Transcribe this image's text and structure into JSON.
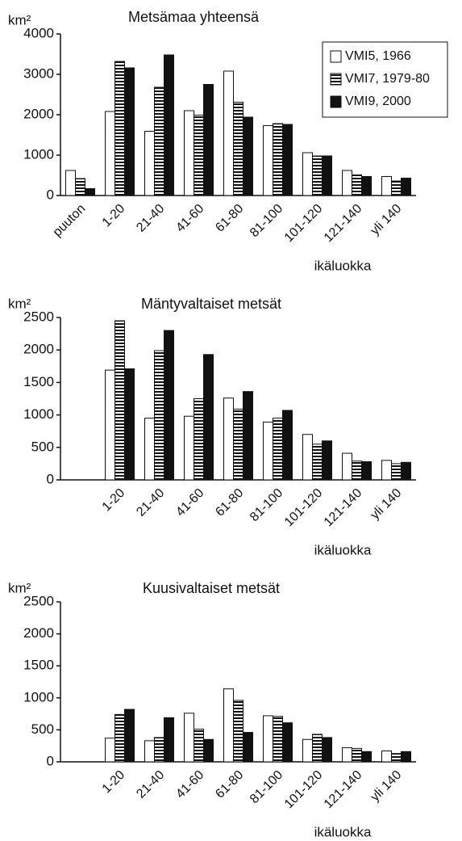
{
  "chart_data": [
    {
      "type": "bar",
      "title": "Metsämaa yhteensä",
      "y_label": "km²",
      "x_label": "ikäluokka",
      "legend": "upper right",
      "categories": [
        "puuton",
        "1-20",
        "21-40",
        "41-60",
        "61-80",
        "81-100",
        "101-120",
        "121-140",
        "yli 140"
      ],
      "series": [
        {
          "name": "VMI5, 1966",
          "color": "#ffffff",
          "values": [
            620,
            2080,
            1590,
            2100,
            3080,
            1730,
            1060,
            620,
            470
          ]
        },
        {
          "name": "VMI7, 1979-80",
          "color": "#ffffff",
          "pattern": "horizontal-stripes",
          "values": [
            420,
            3320,
            2680,
            1990,
            2310,
            1780,
            980,
            510,
            360
          ]
        },
        {
          "name": "VMI9, 2000",
          "color": "#111111",
          "values": [
            170,
            3160,
            3480,
            2750,
            1940,
            1760,
            980,
            470,
            430
          ]
        }
      ],
      "ylim": [
        0,
        4000
      ],
      "yticks": [
        0,
        1000,
        2000,
        3000,
        4000
      ]
    },
    {
      "type": "bar",
      "title": "Mäntyvaltaiset metsät",
      "y_label": "km²",
      "x_label": "ikäluokka",
      "categories": [
        null,
        "1-20",
        "21-40",
        "41-60",
        "61-80",
        "81-100",
        "101-120",
        "121-140",
        "yli 140"
      ],
      "series": [
        {
          "color": "#ffffff",
          "values": [
            null,
            1690,
            950,
            980,
            1260,
            890,
            700,
            410,
            300
          ]
        },
        {
          "color": "#ffffff",
          "pattern": "horizontal-stripes",
          "values": [
            null,
            2450,
            1990,
            1250,
            1090,
            950,
            550,
            290,
            250
          ]
        },
        {
          "color": "#111111",
          "values": [
            null,
            1710,
            2300,
            1930,
            1360,
            1070,
            600,
            280,
            270
          ]
        }
      ],
      "ylim": [
        0,
        2500
      ],
      "yticks": [
        0,
        500,
        1000,
        1500,
        2000,
        2500
      ]
    },
    {
      "type": "bar",
      "title": "Kuusivaltaiset metsät",
      "y_label": "km²",
      "x_label": "ikäluokka",
      "categories": [
        null,
        "1-20",
        "21-40",
        "41-60",
        "61-80",
        "81-100",
        "101-120",
        "121-140",
        "yli 140"
      ],
      "series": [
        {
          "color": "#ffffff",
          "values": [
            null,
            370,
            330,
            760,
            1140,
            720,
            350,
            220,
            170
          ]
        },
        {
          "color": "#ffffff",
          "pattern": "horizontal-stripes",
          "values": [
            null,
            740,
            380,
            510,
            960,
            710,
            430,
            210,
            130
          ]
        },
        {
          "color": "#111111",
          "values": [
            null,
            820,
            690,
            350,
            460,
            610,
            380,
            160,
            160
          ]
        }
      ],
      "ylim": [
        0,
        2500
      ],
      "yticks": [
        0,
        500,
        1000,
        1500,
        2000,
        2500
      ]
    }
  ]
}
